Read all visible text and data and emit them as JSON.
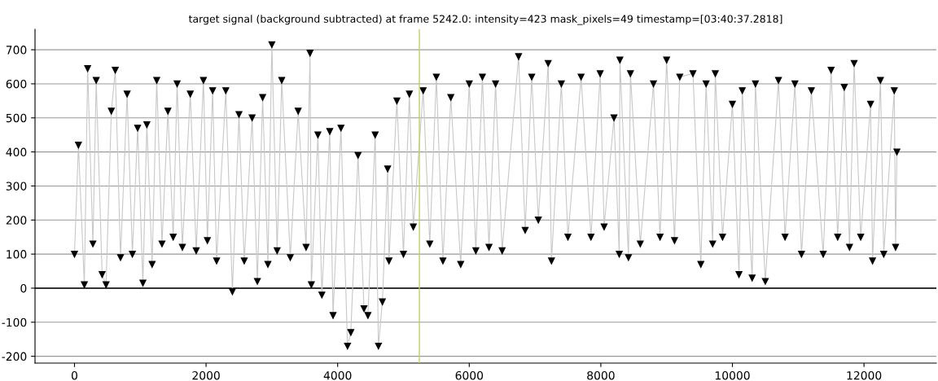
{
  "chart_data": {
    "type": "line",
    "title": "target signal (background subtracted) at frame 5242.0: intensity=423 mask_pixels=49 timestamp=[03:40:37.2818]",
    "x": [
      0,
      60,
      150,
      200,
      280,
      330,
      420,
      480,
      560,
      620,
      700,
      800,
      880,
      960,
      1040,
      1100,
      1180,
      1250,
      1330,
      1420,
      1500,
      1560,
      1640,
      1760,
      1850,
      1960,
      2020,
      2100,
      2160,
      2300,
      2400,
      2500,
      2580,
      2700,
      2780,
      2860,
      2940,
      3000,
      3080,
      3150,
      3280,
      3400,
      3520,
      3580,
      3600,
      3700,
      3760,
      3880,
      3930,
      4050,
      4150,
      4200,
      4310,
      4400,
      4460,
      4570,
      4620,
      4680,
      4760,
      4780,
      4900,
      5000,
      5090,
      5150,
      5300,
      5400,
      5500,
      5600,
      5720,
      5870,
      6000,
      6100,
      6200,
      6300,
      6400,
      6500,
      6750,
      6850,
      6950,
      7050,
      7200,
      7250,
      7400,
      7500,
      7700,
      7850,
      7990,
      8050,
      8200,
      8280,
      8290,
      8420,
      8450,
      8600,
      8800,
      8900,
      9000,
      9120,
      9200,
      9400,
      9520,
      9600,
      9700,
      9740,
      9850,
      10000,
      10100,
      10150,
      10300,
      10350,
      10500,
      10700,
      10800,
      10950,
      11050,
      11200,
      11380,
      11500,
      11600,
      11700,
      11780,
      11850,
      11950,
      12100,
      12130,
      12250,
      12300,
      12460,
      12480,
      12500
    ],
    "series": [
      {
        "color": "#000000",
        "values": [
          100,
          420,
          10,
          645,
          130,
          610,
          40,
          10,
          520,
          640,
          90,
          570,
          100,
          470,
          15,
          480,
          70,
          610,
          130,
          520,
          150,
          600,
          120,
          570,
          110,
          610,
          140,
          580,
          80,
          580,
          -10,
          510,
          80,
          500,
          20,
          560,
          70,
          715,
          110,
          610,
          90,
          520,
          120,
          690,
          10,
          450,
          -20,
          460,
          -80,
          470,
          -170,
          -130,
          390,
          -60,
          -80,
          450,
          -170,
          -40,
          350,
          80,
          550,
          100,
          570,
          180,
          580,
          130,
          620,
          80,
          560,
          70,
          600,
          110,
          620,
          120,
          600,
          110,
          680,
          170,
          620,
          200,
          660,
          80,
          600,
          150,
          620,
          150,
          630,
          180,
          500,
          100,
          670,
          90,
          630,
          130,
          600,
          150,
          670,
          140,
          620,
          630,
          70,
          600,
          130,
          630,
          150,
          540,
          40,
          580,
          30,
          600,
          20,
          610,
          150,
          600,
          100,
          580,
          100,
          640,
          150,
          590,
          120,
          660,
          150,
          540,
          80,
          610,
          100,
          580,
          120,
          400
        ]
      }
    ],
    "marker": "triangle",
    "line_style": "solid",
    "xlim": [
      -600,
      13100
    ],
    "xticks": [
      0,
      2000,
      4000,
      6000,
      8000,
      10000,
      12000
    ],
    "ylim": [
      -220,
      760
    ],
    "yticks": [
      -200,
      -100,
      0,
      100,
      200,
      300,
      400,
      500,
      600,
      700
    ],
    "grid": "y",
    "ref_lines": [
      {
        "axis": "y",
        "value": 0,
        "color": "#000000"
      },
      {
        "axis": "x",
        "value": 5242,
        "color": "#c5cc6a"
      }
    ]
  }
}
